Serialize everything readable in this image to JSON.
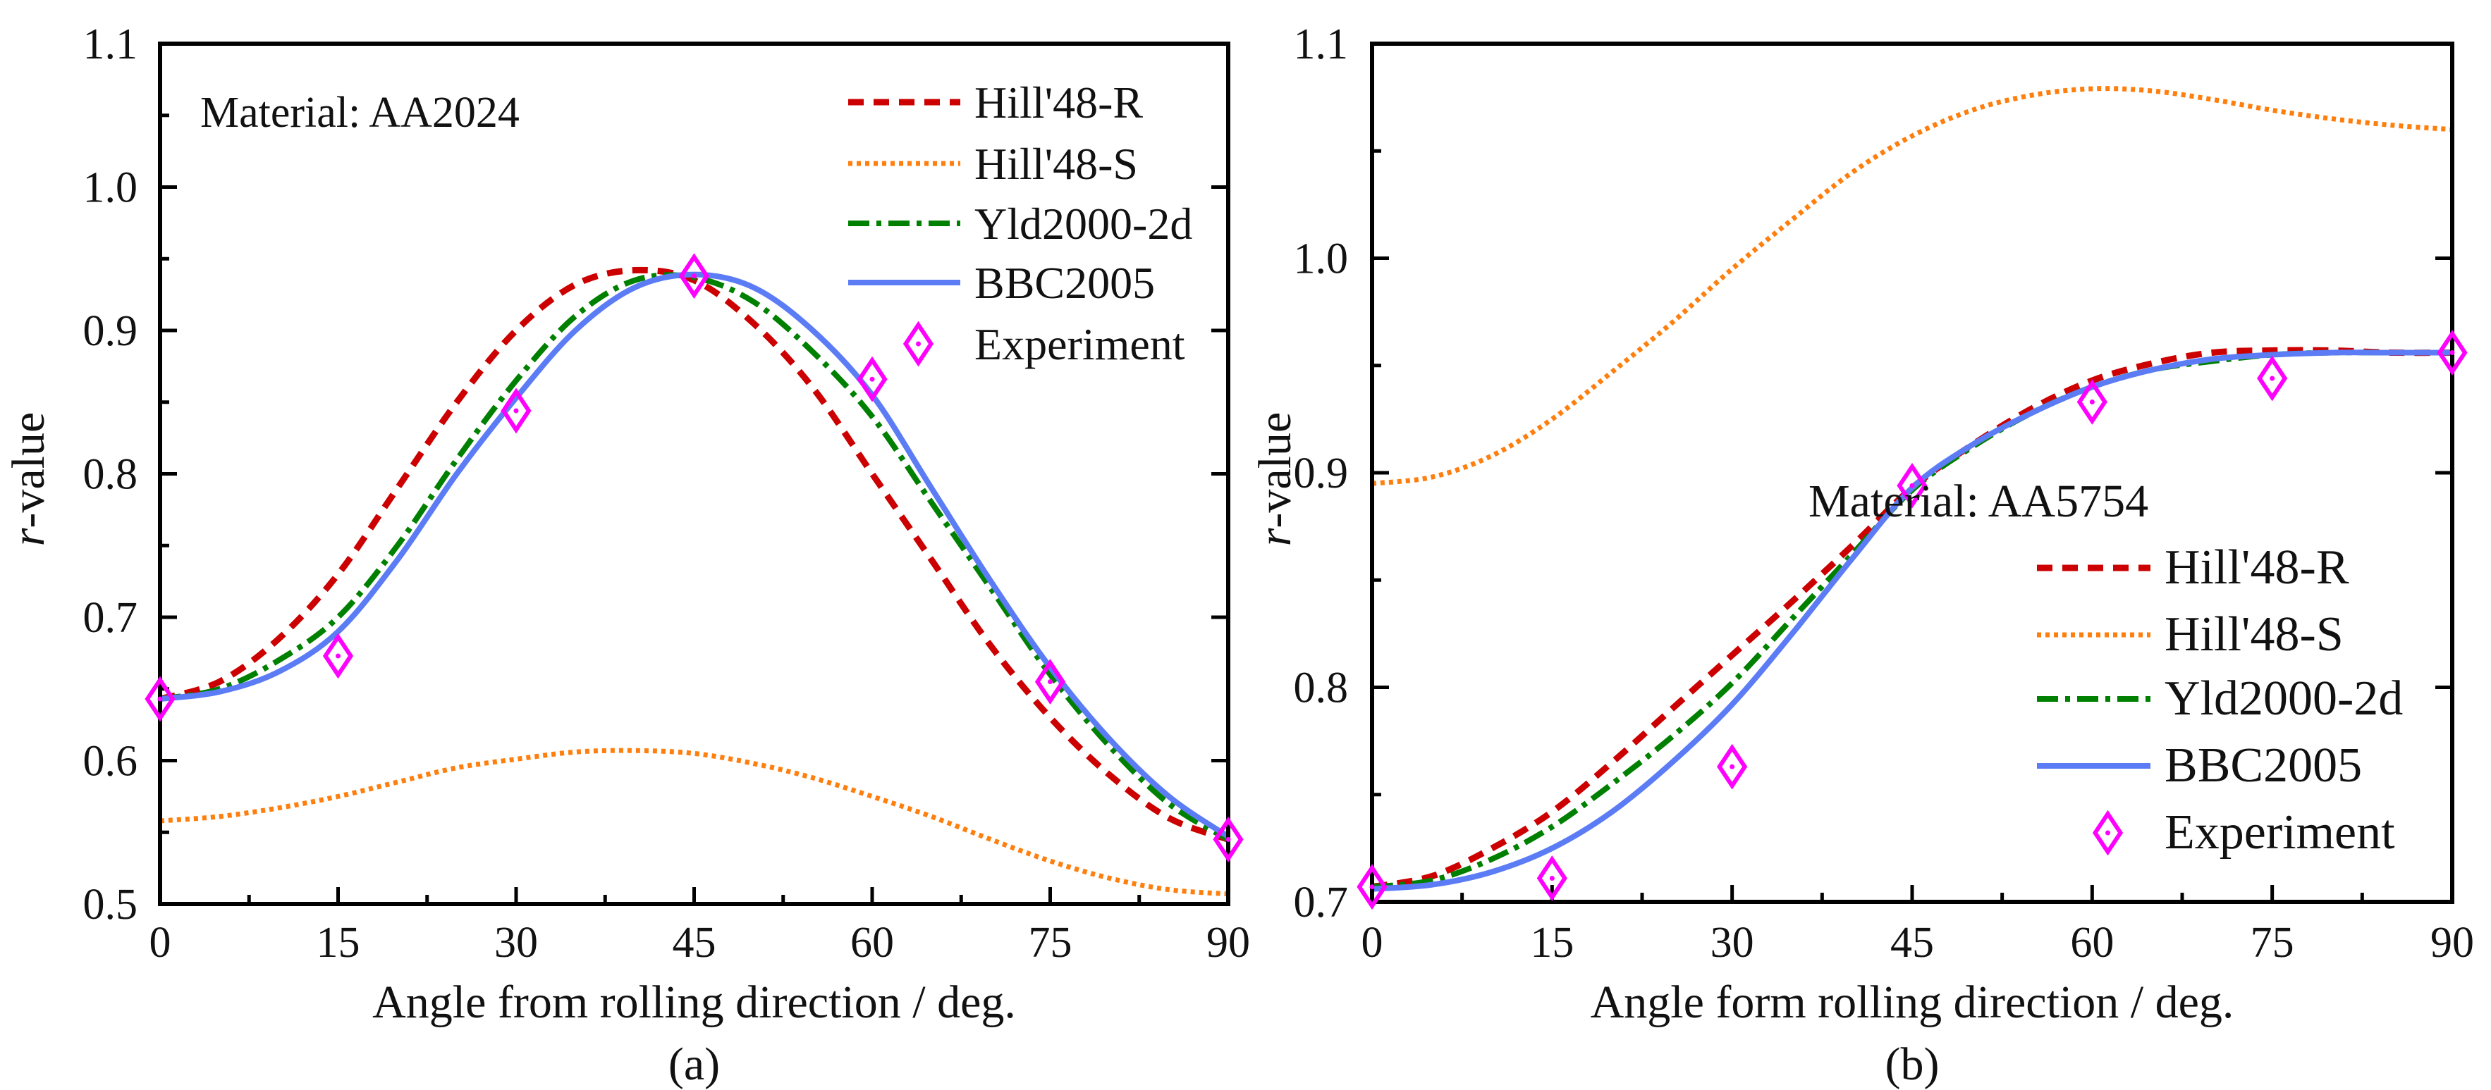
{
  "colors": {
    "hill48r": "#cc0000",
    "hill48s": "#ff7f0e",
    "yld2000": "#008000",
    "bbc2005": "#5b7cf5",
    "experiment": "#ff00ff"
  },
  "chart_data": [
    {
      "type": "line",
      "panel_label": "(a)",
      "annotation": "Material: AA2024",
      "xlabel": "Angle from rolling direction / deg.",
      "ylabel_italic": "r",
      "ylabel_rest": "-value",
      "xlim": [
        0,
        90
      ],
      "ylim": [
        0.5,
        1.1
      ],
      "xticks": [
        "0",
        "15",
        "30",
        "45",
        "60",
        "75",
        "90"
      ],
      "yticks": [
        "0.5",
        "0.6",
        "0.7",
        "0.8",
        "0.9",
        "1.0",
        "1.1"
      ],
      "legend_position": "top-right",
      "x": [
        0,
        5,
        10,
        15,
        20,
        25,
        30,
        35,
        40,
        45,
        50,
        55,
        60,
        65,
        70,
        75,
        80,
        85,
        90
      ],
      "series": [
        {
          "name": "Hill'48-R",
          "key": "hill48r",
          "values": [
            0.643,
            0.655,
            0.685,
            0.73,
            0.79,
            0.85,
            0.9,
            0.932,
            0.942,
            0.935,
            0.905,
            0.86,
            0.8,
            0.74,
            0.68,
            0.63,
            0.59,
            0.56,
            0.545
          ]
        },
        {
          "name": "Hill'48-S",
          "key": "hill48s",
          "values": [
            0.558,
            0.561,
            0.567,
            0.575,
            0.585,
            0.595,
            0.601,
            0.606,
            0.607,
            0.605,
            0.598,
            0.588,
            0.575,
            0.561,
            0.545,
            0.53,
            0.518,
            0.51,
            0.507
          ]
        },
        {
          "name": "Yld2000-2d",
          "key": "yld2000",
          "values": [
            0.643,
            0.65,
            0.67,
            0.7,
            0.75,
            0.81,
            0.865,
            0.91,
            0.935,
            0.937,
            0.92,
            0.885,
            0.84,
            0.78,
            0.72,
            0.66,
            0.61,
            0.57,
            0.545
          ]
        },
        {
          "name": "BBC2005",
          "key": "bbc2005",
          "values": [
            0.643,
            0.648,
            0.662,
            0.69,
            0.74,
            0.8,
            0.853,
            0.9,
            0.93,
            0.939,
            0.93,
            0.9,
            0.855,
            0.79,
            0.725,
            0.665,
            0.615,
            0.575,
            0.547
          ]
        }
      ],
      "experiment": {
        "name": "Experiment",
        "x": [
          0,
          15,
          30,
          45,
          60,
          75,
          90
        ],
        "y": [
          0.643,
          0.673,
          0.844,
          0.938,
          0.866,
          0.655,
          0.545
        ]
      }
    },
    {
      "type": "line",
      "panel_label": "(b)",
      "annotation": "Material: AA5754",
      "xlabel": "Angle form rolling direction / deg.",
      "ylabel_italic": "r",
      "ylabel_rest": "-value",
      "xlim": [
        0,
        90
      ],
      "ylim": [
        0.7,
        1.1
      ],
      "xticks": [
        "0",
        "15",
        "30",
        "45",
        "60",
        "75",
        "90"
      ],
      "yticks": [
        "0.7",
        "0.8",
        "0.9",
        "1.0",
        "1.1"
      ],
      "legend_position": "bottom-right",
      "x": [
        0,
        5,
        10,
        15,
        20,
        25,
        30,
        35,
        40,
        45,
        50,
        55,
        60,
        65,
        70,
        75,
        80,
        85,
        90
      ],
      "series": [
        {
          "name": "Hill'48-R",
          "key": "hill48r",
          "values": [
            0.707,
            0.712,
            0.725,
            0.742,
            0.765,
            0.79,
            0.815,
            0.84,
            0.866,
            0.893,
            0.913,
            0.93,
            0.943,
            0.951,
            0.956,
            0.957,
            0.957,
            0.956,
            0.956
          ]
        },
        {
          "name": "Hill'48-S",
          "key": "hill48s",
          "values": [
            0.895,
            0.898,
            0.908,
            0.925,
            0.947,
            0.97,
            0.995,
            1.018,
            1.04,
            1.057,
            1.069,
            1.076,
            1.079,
            1.078,
            1.074,
            1.069,
            1.065,
            1.062,
            1.06
          ]
        },
        {
          "name": "Yld2000-2d",
          "key": "yld2000",
          "values": [
            0.707,
            0.71,
            0.72,
            0.735,
            0.755,
            0.777,
            0.802,
            0.832,
            0.862,
            0.892,
            0.912,
            0.928,
            0.94,
            0.948,
            0.952,
            0.955,
            0.956,
            0.956,
            0.956
          ]
        },
        {
          "name": "BBC2005",
          "key": "bbc2005",
          "values": [
            0.706,
            0.708,
            0.714,
            0.725,
            0.742,
            0.765,
            0.792,
            0.825,
            0.86,
            0.893,
            0.913,
            0.928,
            0.94,
            0.948,
            0.953,
            0.955,
            0.956,
            0.956,
            0.956
          ]
        }
      ],
      "experiment": {
        "name": "Experiment",
        "x": [
          0,
          15,
          30,
          45,
          60,
          75,
          90
        ],
        "y": [
          0.707,
          0.711,
          0.763,
          0.894,
          0.933,
          0.944,
          0.956
        ]
      }
    }
  ]
}
